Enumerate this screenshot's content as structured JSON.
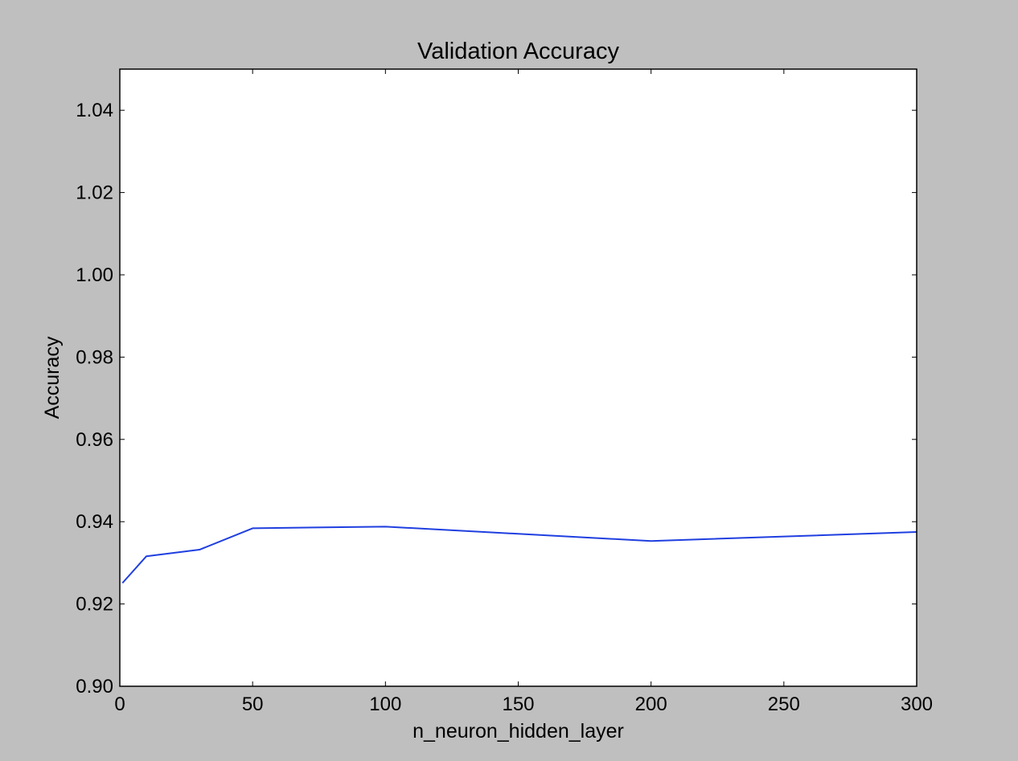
{
  "chart_data": {
    "type": "line",
    "title": "Validation Accuracy",
    "xlabel": "n_neuron_hidden_layer",
    "ylabel": "Accuracy",
    "xlim": [
      0,
      300
    ],
    "ylim": [
      0.9,
      1.05
    ],
    "x_ticks": [
      "0",
      "50",
      "100",
      "150",
      "200",
      "250",
      "300"
    ],
    "y_ticks": [
      "0.90",
      "0.92",
      "0.94",
      "0.96",
      "0.98",
      "1.00",
      "1.02",
      "1.04"
    ],
    "grid": false,
    "series": [
      {
        "color": "#1f3fe0",
        "x": [
          1,
          10,
          30,
          50,
          100,
          200,
          300
        ],
        "y": [
          0.9251,
          0.9316,
          0.9332,
          0.9384,
          0.9388,
          0.9353,
          0.9375
        ]
      }
    ]
  }
}
